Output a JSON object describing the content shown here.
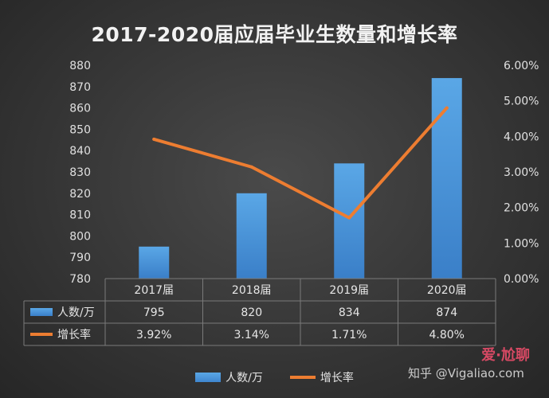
{
  "chart_data": {
    "type": "bar",
    "title": "2017-2020届应届毕业生数量和增长率",
    "categories": [
      "2017届",
      "2018届",
      "2019届",
      "2020届"
    ],
    "series": [
      {
        "name": "人数/万",
        "type": "bar",
        "axis": "left",
        "values": [
          795,
          820,
          834,
          874
        ],
        "color": "#4a92d8"
      },
      {
        "name": "增长率",
        "type": "line",
        "axis": "right",
        "values": [
          3.92,
          3.14,
          1.71,
          4.8
        ],
        "labels": [
          "3.92%",
          "3.14%",
          "1.71%",
          "4.80%"
        ],
        "color": "#ed7d31"
      }
    ],
    "y_left": {
      "min": 780,
      "max": 880,
      "step": 10,
      "ticks": [
        "780",
        "790",
        "800",
        "810",
        "820",
        "830",
        "840",
        "850",
        "860",
        "870",
        "880"
      ]
    },
    "y_right": {
      "min": 0,
      "max": 6,
      "step": 1,
      "ticks": [
        "0.00%",
        "1.00%",
        "2.00%",
        "3.00%",
        "4.00%",
        "5.00%",
        "6.00%"
      ]
    },
    "grid": false,
    "data_table": true,
    "legend_position": "bottom"
  },
  "watermark": {
    "zhihu": "知乎 @",
    "site": "爱·尬聊",
    "url": "Vigaliao.com"
  }
}
